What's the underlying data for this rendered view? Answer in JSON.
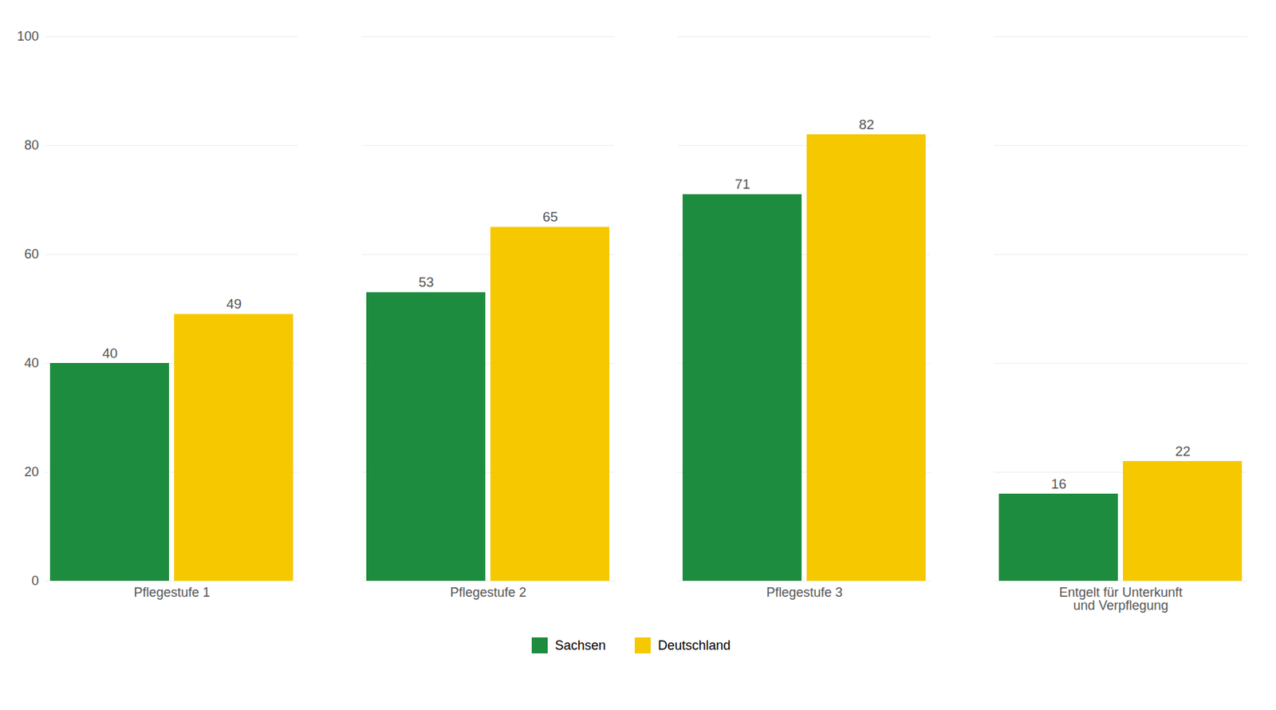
{
  "chart_data": {
    "type": "bar",
    "categories": [
      "Pflegestufe 1",
      "Pflegestufe 2",
      "Pflegestufe 3",
      "Entgelt für Unterkunft\nund Verpflegung"
    ],
    "series": [
      {
        "name": "Sachsen",
        "color": "#1e8c3e",
        "values": [
          40,
          53,
          71,
          16
        ]
      },
      {
        "name": "Deutschland",
        "color": "#f5c800",
        "values": [
          49,
          65,
          82,
          22
        ]
      }
    ],
    "ylim": [
      0,
      100
    ],
    "yticks": [
      0,
      20,
      40,
      60,
      80,
      100
    ],
    "grid": true,
    "data_labels": true,
    "legend": "bottom"
  }
}
